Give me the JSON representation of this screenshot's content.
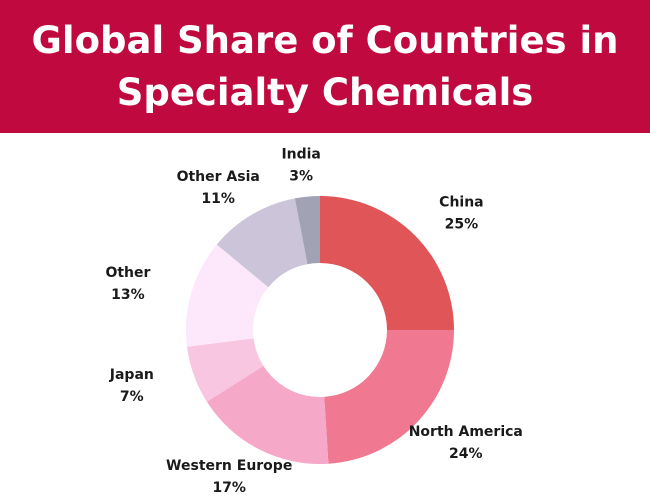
{
  "chart_data": {
    "type": "pie",
    "title": "Global Share of Countries in Specialty Chemicals",
    "categories": [
      "China",
      "North America",
      "Western Europe",
      "Japan",
      "Other",
      "Other Asia",
      "India"
    ],
    "values": [
      25,
      24,
      17,
      7,
      13,
      11,
      3
    ],
    "value_labels": [
      "25%",
      "24%",
      "17%",
      "7%",
      "13%",
      "11%",
      "3%"
    ],
    "colors": [
      "#e05558",
      "#f07890",
      "#f5a8c8",
      "#f8c6e0",
      "#fde8fb",
      "#ccc5d9",
      "#a1a2b3"
    ],
    "donut": true
  }
}
